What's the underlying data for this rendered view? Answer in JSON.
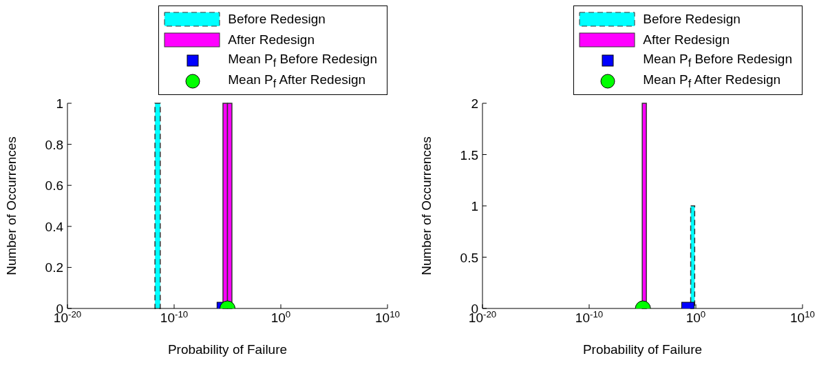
{
  "chart_data": [
    {
      "type": "histogram",
      "xlabel": "Probability of Failure",
      "ylabel": "Number of Occurrences",
      "log": "x",
      "legend": "top right",
      "xlim": [
        1e-20,
        10000000000.0
      ],
      "xticks": [
        {
          "value": 1e-20,
          "label": "10$^{-20}$"
        },
        {
          "value": 1e-10,
          "label": "10$^{-10}$"
        },
        {
          "value": 1,
          "label": "10$^{0}$"
        },
        {
          "value": 10000000000.0,
          "label": "10$^{10}$"
        }
      ],
      "ylim": [
        0,
        1
      ],
      "yticks": [
        0,
        0.2,
        0.4,
        0.6,
        0.8,
        1
      ],
      "series": [
        {
          "name": "Before Redesign",
          "color": "#00ffff",
          "line_style": "dashed",
          "bins": [
            1.6e-12,
            5e-12
          ],
          "values": [
            1
          ]
        },
        {
          "name": "After Redesign",
          "color": "#ff00ff",
          "line_style": "solid",
          "bins": [
            3.8e-06,
            1e-05,
            2.6e-05
          ],
          "values": [
            1,
            1
          ]
        },
        {
          "name": "Mean P$_{f}$ Before Redesign",
          "type": "scatter",
          "marker": "square",
          "color": "#0000ff",
          "x": [
            4e-06
          ],
          "values": [
            0
          ]
        },
        {
          "name": "Mean P$_{f}$ After Redesign",
          "type": "scatter",
          "marker": "circle",
          "color": "#00ff00",
          "x": [
            1e-05
          ],
          "values": [
            0
          ]
        }
      ]
    },
    {
      "type": "histogram",
      "xlabel": "Probability of Failure",
      "ylabel": "Number of Occurrences",
      "log": "x",
      "legend": "top right",
      "xlim": [
        1e-20,
        10000000000.0
      ],
      "xticks": [
        {
          "value": 1e-20,
          "label": "10$^{-20}$"
        },
        {
          "value": 1e-10,
          "label": "10$^{-10}$"
        },
        {
          "value": 1,
          "label": "10$^{0}$"
        },
        {
          "value": 10000000000.0,
          "label": "10$^{10}$"
        }
      ],
      "ylim": [
        0,
        2
      ],
      "yticks": [
        0,
        0.5,
        1,
        1.5,
        2
      ],
      "series": [
        {
          "name": "Before Redesign",
          "color": "#00ffff",
          "line_style": "dashed",
          "bins": [
            0.33,
            0.78
          ],
          "values": [
            1
          ]
        },
        {
          "name": "After Redesign",
          "color": "#ff00ff",
          "line_style": "solid",
          "bins": [
            9.5e-06,
            2.3e-05
          ],
          "values": [
            2
          ]
        },
        {
          "name": "Mean P$_{f}$ Before Redesign",
          "type": "scatter",
          "marker": "square",
          "color": "#0000ff",
          "x": [
            0.18
          ],
          "values": [
            0
          ]
        },
        {
          "name": "Mean P$_{f}$ After Redesign",
          "type": "scatter",
          "marker": "circle",
          "color": "#00ff00",
          "x": [
            1.1e-05
          ],
          "values": [
            0
          ]
        }
      ]
    }
  ]
}
